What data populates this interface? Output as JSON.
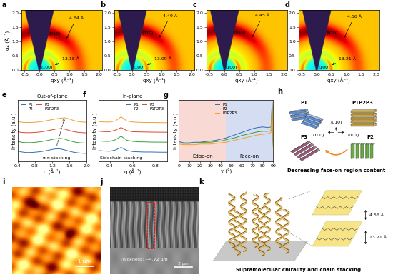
{
  "chart_data": [
    {
      "type": "heatmap",
      "title": "a",
      "x_label": "qxy (Å⁻¹)",
      "y_label": "qz (Å⁻¹)",
      "xlim": [
        -0.6,
        2.1
      ],
      "xticks": [
        -0.5,
        {
          "value": 0,
          "label": "0.0"
        },
        0.5,
        {
          "value": 1,
          "label": "1.0"
        },
        1.5,
        {
          "value": 2,
          "label": "2.0"
        }
      ],
      "ylim": [
        0,
        2.1
      ],
      "yticks": [
        {
          "value": 0,
          "label": "0.0"
        },
        0.5,
        {
          "value": 1,
          "label": "1.0"
        },
        1.5,
        {
          "value": 2,
          "label": "2.0"
        }
      ],
      "rings": [
        {
          "label": "(010)",
          "q": 1.35,
          "annotation": "4.64 Å"
        },
        {
          "label": "(100)",
          "q": 0.48,
          "annotation": "13.18 Å"
        }
      ]
    },
    {
      "type": "heatmap",
      "title": "b",
      "x_label": "qxy (Å⁻¹)",
      "xlim": [
        -0.6,
        2.1
      ],
      "xticks": [
        -0.5,
        {
          "value": 0,
          "label": "0.0"
        },
        0.5,
        {
          "value": 1,
          "label": "1.0"
        },
        1.5,
        {
          "value": 2,
          "label": "2.0"
        }
      ],
      "ylim": [
        0,
        2.1
      ],
      "yticks": [
        {
          "value": 0,
          "label": "0.0"
        },
        0.5,
        {
          "value": 1,
          "label": "1.0"
        },
        1.5,
        {
          "value": 2,
          "label": "2.0"
        }
      ],
      "rings": [
        {
          "label": "(010)",
          "q": 1.4,
          "annotation": "4.49 Å"
        },
        {
          "label": "(100)",
          "q": 0.48,
          "annotation": "13.09 Å"
        }
      ]
    },
    {
      "type": "heatmap",
      "title": "c",
      "x_label": "qxy (Å⁻¹)",
      "xlim": [
        -0.6,
        2.1
      ],
      "xticks": [
        -0.5,
        {
          "value": 0,
          "label": "0.0"
        },
        0.5,
        {
          "value": 1,
          "label": "1.0"
        },
        1.5,
        {
          "value": 2,
          "label": "2.0"
        }
      ],
      "ylim": [
        0,
        2.1
      ],
      "yticks": [
        {
          "value": 0,
          "label": "0.0"
        },
        0.5,
        {
          "value": 1,
          "label": "1.0"
        },
        1.5,
        {
          "value": 2,
          "label": "2.0"
        }
      ],
      "rings": [
        {
          "label": "(010)",
          "q": 1.41,
          "annotation": "4.45 Å"
        },
        {
          "label": "(100)",
          "q": 0.48
        }
      ]
    },
    {
      "type": "heatmap",
      "title": "d",
      "x_label": "qxy (Å⁻¹)",
      "xlim": [
        -0.6,
        2.1
      ],
      "xticks": [
        -0.5,
        {
          "value": 0,
          "label": "0.0"
        },
        0.5,
        {
          "value": 1,
          "label": "1.0"
        },
        1.5,
        {
          "value": 2,
          "label": "2.0"
        }
      ],
      "ylim": [
        0,
        2.1
      ],
      "yticks": [
        {
          "value": 0,
          "label": "0.0"
        },
        0.5,
        {
          "value": 1,
          "label": "1.0"
        },
        1.5,
        {
          "value": 2,
          "label": "2.0"
        }
      ],
      "rings": [
        {
          "label": "(010)",
          "q": 1.38,
          "annotation": "4.56 Å"
        },
        {
          "label": "(100)",
          "q": 0.475,
          "annotation": "13.21 Å"
        }
      ]
    },
    {
      "type": "line",
      "title": "e",
      "subtitle": "Out-of-plane",
      "x_label": "q (Å⁻¹)",
      "y_label": "Intensity (a.u.)",
      "x": [
        0.4,
        0.5,
        0.6,
        0.7,
        0.8,
        0.9,
        1.0,
        1.1,
        1.2,
        1.3,
        1.4,
        1.5,
        1.6,
        1.7,
        1.8,
        1.9,
        2.0
      ],
      "xlim": [
        0.4,
        2.0
      ],
      "xticks": [
        0.4,
        0.8,
        1.2,
        1.6,
        {
          "value": 2,
          "label": "2.0"
        }
      ],
      "ylim": [
        -0.4,
        5.6
      ],
      "tick_labels": "x",
      "legend": "upper left",
      "annotation": "π-π stacking",
      "series": [
        {
          "name": "P1",
          "color": "#2f6db5",
          "values": [
            0.6,
            0.5,
            0.45,
            0.45,
            0.48,
            0.52,
            0.58,
            0.66,
            0.75,
            0.82,
            0.8,
            0.7,
            0.58,
            0.48,
            0.42,
            0.38,
            0.36
          ]
        },
        {
          "name": "P2",
          "color": "#3a9e3a",
          "values": [
            1.55,
            1.45,
            1.42,
            1.42,
            1.45,
            1.5,
            1.56,
            1.64,
            1.73,
            1.8,
            1.84,
            1.76,
            1.62,
            1.5,
            1.43,
            1.39,
            1.37
          ]
        },
        {
          "name": "P3",
          "color": "#e0452a",
          "values": [
            2.5,
            2.42,
            2.4,
            2.4,
            2.42,
            2.46,
            2.52,
            2.6,
            2.68,
            2.76,
            2.8,
            2.74,
            2.62,
            2.5,
            2.44,
            2.4,
            2.38
          ]
        },
        {
          "name": "P1P2P3",
          "color": "#f0a030",
          "values": [
            3.5,
            3.42,
            3.4,
            3.4,
            3.42,
            3.46,
            3.52,
            3.6,
            3.68,
            3.76,
            3.82,
            3.86,
            3.75,
            3.6,
            3.5,
            3.45,
            3.42
          ]
        }
      ]
    },
    {
      "type": "line",
      "title": "f",
      "subtitle": "In-plane",
      "x_label": "q (Å⁻¹)",
      "y_label": "Intensity (a.u.)",
      "x": [
        0.3,
        0.35,
        0.4,
        0.45,
        0.5,
        0.55,
        0.6,
        0.65,
        0.7,
        0.75,
        0.8,
        0.85,
        0.9
      ],
      "xlim": [
        0.3,
        0.9
      ],
      "xticks": [
        0.4,
        0.6,
        0.8
      ],
      "ylim": [
        -0.6,
        5.4
      ],
      "tick_labels": "x",
      "legend": "upper right",
      "annotation": "Sidechain stacking",
      "series": [
        {
          "name": "P1",
          "color": "#2f6db5",
          "values": [
            0.45,
            0.4,
            0.38,
            0.5,
            0.75,
            0.45,
            0.35,
            0.32,
            0.3,
            0.3,
            0.29,
            0.28,
            0.28
          ]
        },
        {
          "name": "P2",
          "color": "#3a9e3a",
          "values": [
            1.4,
            1.35,
            1.35,
            1.5,
            1.85,
            1.45,
            1.35,
            1.3,
            1.3,
            1.28,
            1.27,
            1.27,
            1.26
          ]
        },
        {
          "name": "P3",
          "color": "#e0452a",
          "values": [
            2.35,
            2.3,
            2.3,
            2.45,
            2.7,
            2.4,
            2.3,
            2.28,
            2.27,
            2.26,
            2.25,
            2.25,
            2.24
          ]
        },
        {
          "name": "P1P2P3",
          "color": "#f0a030",
          "values": [
            3.3,
            3.25,
            3.25,
            3.35,
            3.75,
            3.35,
            3.25,
            3.22,
            3.2,
            3.2,
            3.2,
            3.18,
            3.18
          ]
        }
      ]
    },
    {
      "type": "line",
      "title": "g",
      "x_label": "χ (°)",
      "y_label": "Intensity (a.u.)",
      "x": [
        0,
        5,
        10,
        15,
        20,
        25,
        30,
        35,
        40,
        45,
        50,
        55,
        60,
        65,
        70,
        75,
        80,
        85,
        88,
        89,
        90
      ],
      "xlim": [
        0,
        90
      ],
      "xticks": [
        0,
        10,
        20,
        30,
        40,
        50,
        60,
        70,
        80,
        90
      ],
      "ylim": [
        0,
        1
      ],
      "tick_labels": "x",
      "legend": "upper center",
      "regions": [
        {
          "label": "Edge-on",
          "from": 0,
          "to": 45,
          "color": "#f9d9d4"
        },
        {
          "label": "Face-on",
          "from": 45,
          "to": 90,
          "color": "#d4ddf2"
        }
      ],
      "series": [
        {
          "name": "P1",
          "color": "#2f6db5",
          "values": [
            0.32,
            0.3,
            0.3,
            0.31,
            0.31,
            0.32,
            0.33,
            0.34,
            0.36,
            0.38,
            0.41,
            0.44,
            0.47,
            0.5,
            0.53,
            0.55,
            0.56,
            0.55,
            0.56,
            0.95,
            0.3
          ]
        },
        {
          "name": "P2",
          "color": "#3a9e3a",
          "values": [
            0.3,
            0.29,
            0.29,
            0.3,
            0.3,
            0.31,
            0.31,
            0.32,
            0.33,
            0.35,
            0.37,
            0.39,
            0.42,
            0.44,
            0.46,
            0.48,
            0.49,
            0.49,
            0.5,
            0.9,
            0.25
          ]
        },
        {
          "name": "P1P2P3",
          "color": "#f0a030",
          "values": [
            0.28,
            0.27,
            0.27,
            0.27,
            0.28,
            0.28,
            0.28,
            0.29,
            0.3,
            0.31,
            0.33,
            0.35,
            0.37,
            0.39,
            0.41,
            0.43,
            0.44,
            0.45,
            0.47,
            0.97,
            0.22
          ]
        }
      ]
    }
  ],
  "panels": [
    {
      "type": "diagram",
      "title": "h",
      "nodes": [
        {
          "label": "P1",
          "color": "#5b8ed6"
        },
        {
          "label": "P1P2P3",
          "color": "#c9a23c"
        },
        {
          "label": "P3",
          "color": "#9a5877"
        },
        {
          "label": "P2",
          "color": "#6aad45"
        }
      ],
      "directions": [
        "(010)",
        "(100)",
        "(001)"
      ],
      "caption": "Decreasing face-on region content"
    },
    {
      "type": "image",
      "title": "i",
      "scale_bar": {
        "label": "1 μm",
        "length": 1
      }
    },
    {
      "type": "image",
      "title": "j",
      "annotation": "Thickness: ~4.72 μm",
      "scale_bar": {
        "label": "2 μm",
        "length": 2
      }
    },
    {
      "type": "diagram",
      "title": "k",
      "caption": "Supramolecular chirality and chain stacking",
      "dimensions": [
        "4.56 Å",
        "13.21 Å"
      ]
    }
  ]
}
